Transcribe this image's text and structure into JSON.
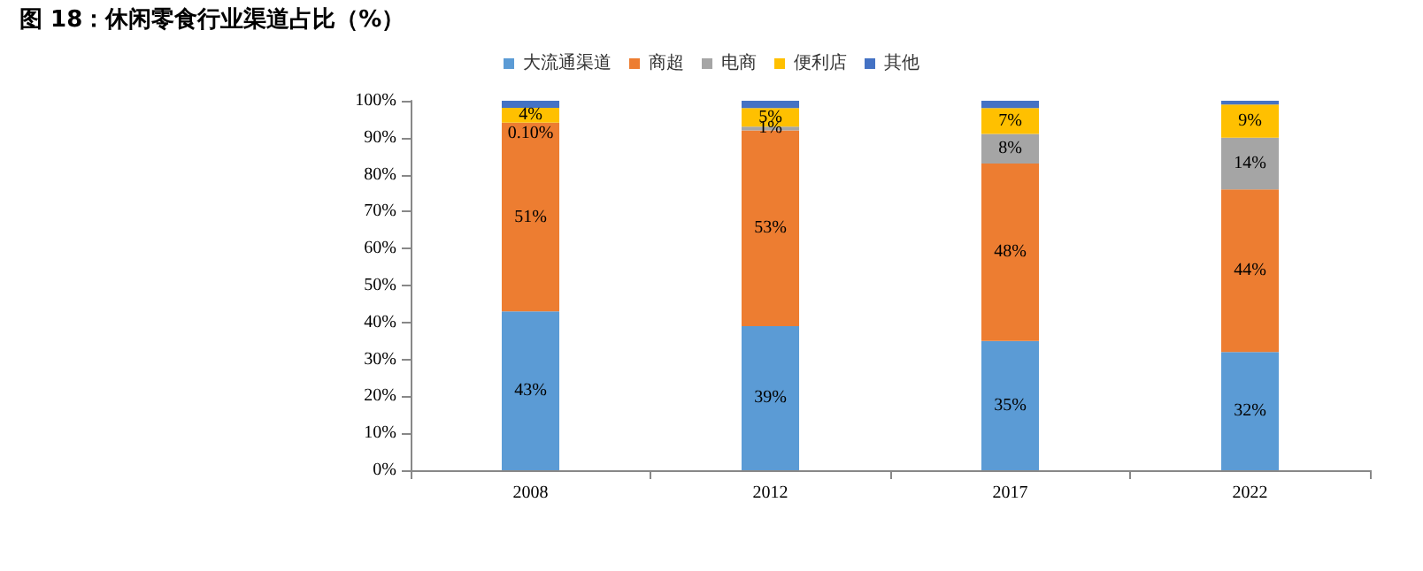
{
  "chart_data": {
    "type": "bar",
    "stacked": true,
    "title": "图 18：休闲零食行业渠道占比（%）",
    "categories": [
      "2008",
      "2012",
      "2017",
      "2022"
    ],
    "series": [
      {
        "name": "大流通渠道",
        "color": "#5b9bd5",
        "values": [
          43,
          39,
          35,
          32
        ],
        "value_labels": [
          "43%",
          "39%",
          "35%",
          "32%"
        ]
      },
      {
        "name": "商超",
        "color": "#ed7d31",
        "values": [
          51,
          53,
          48,
          44
        ],
        "value_labels": [
          "51%",
          "53%",
          "48%",
          "44%"
        ]
      },
      {
        "name": "电商",
        "color": "#a5a5a5",
        "values": [
          0.1,
          1,
          8,
          14
        ],
        "value_labels": [
          "0.10%",
          "1%",
          "8%",
          "14%"
        ]
      },
      {
        "name": "便利店",
        "color": "#ffc000",
        "values": [
          4,
          5,
          7,
          9
        ],
        "value_labels": [
          "4%",
          "5%",
          "7%",
          "9%"
        ]
      },
      {
        "name": "其他",
        "color": "#4472c4",
        "values": [
          1.9,
          2,
          2,
          1
        ]
      }
    ],
    "ylim": [
      0,
      100
    ],
    "yticks": [
      {
        "value": 0,
        "label": "0%"
      },
      {
        "value": 10,
        "label": "10%"
      },
      {
        "value": 20,
        "label": "20%"
      },
      {
        "value": 30,
        "label": "30%"
      },
      {
        "value": 40,
        "label": "40%"
      },
      {
        "value": 50,
        "label": "50%"
      },
      {
        "value": 60,
        "label": "60%"
      },
      {
        "value": 70,
        "label": "70%"
      },
      {
        "value": 80,
        "label": "80%"
      },
      {
        "value": 90,
        "label": "90%"
      },
      {
        "value": 100,
        "label": "100%"
      }
    ],
    "grid": false,
    "legend": "top"
  }
}
